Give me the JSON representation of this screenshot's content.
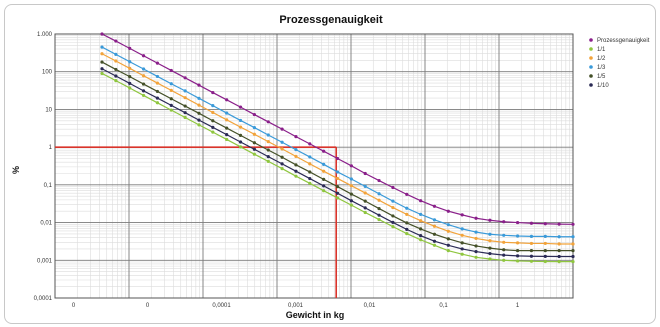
{
  "chart_data": {
    "type": "line",
    "title": "Prozessgenauigkeit",
    "xlabel": "Gewicht in kg",
    "ylabel": "%",
    "x_scale": "log",
    "y_scale": "log",
    "x_ticks": [
      "0",
      "0",
      "0,0001",
      "0,001",
      "0,01",
      "0,1",
      "1"
    ],
    "y_ticks": [
      "1.000",
      "100",
      "10",
      "1",
      "0,1",
      "0,01",
      "0,001",
      "0,0001"
    ],
    "grid": true,
    "legend_position": "right",
    "reference_lines": {
      "y": 1,
      "x": 0.001,
      "color": "#d9342b"
    },
    "series": [
      {
        "name": "Prozessgenauigkeit",
        "color": "#8a1f8a",
        "y": [
          1000,
          650,
          415,
          265,
          169,
          108,
          69,
          44,
          28,
          18,
          11.5,
          7.3,
          4.7,
          3.0,
          1.9,
          1.22,
          0.78,
          0.5,
          0.32,
          0.2,
          0.13,
          0.085,
          0.056,
          0.038,
          0.027,
          0.02,
          0.016,
          0.013,
          0.0115,
          0.0105,
          0.01,
          0.0096,
          0.0093,
          0.0091,
          0.009
        ]
      },
      {
        "name": "1/1",
        "color": "#8fc63f",
        "y": [
          90,
          58,
          37,
          23.5,
          15,
          9.6,
          6.1,
          3.9,
          2.5,
          1.6,
          1.02,
          0.65,
          0.42,
          0.27,
          0.17,
          0.11,
          0.07,
          0.045,
          0.029,
          0.0185,
          0.012,
          0.0078,
          0.0051,
          0.0035,
          0.0025,
          0.0018,
          0.00145,
          0.0012,
          0.00108,
          0.001,
          0.00096,
          0.00094,
          0.00093,
          0.00092,
          0.00092
        ]
      },
      {
        "name": "1/2",
        "color": "#f2a33a",
        "y": [
          300,
          192,
          123,
          78,
          50,
          32,
          20.5,
          13,
          8.3,
          5.3,
          3.4,
          2.2,
          1.4,
          0.9,
          0.57,
          0.36,
          0.23,
          0.148,
          0.095,
          0.061,
          0.039,
          0.025,
          0.0165,
          0.0112,
          0.008,
          0.0059,
          0.0046,
          0.0038,
          0.0033,
          0.003,
          0.0029,
          0.0028,
          0.0028,
          0.0027,
          0.0027
        ]
      },
      {
        "name": "1/3",
        "color": "#3a9ad9",
        "y": [
          450,
          288,
          184,
          118,
          75,
          48,
          31,
          19.7,
          12.6,
          8.0,
          5.1,
          3.3,
          2.1,
          1.35,
          0.86,
          0.55,
          0.35,
          0.22,
          0.143,
          0.091,
          0.058,
          0.037,
          0.024,
          0.0165,
          0.0118,
          0.0088,
          0.0068,
          0.0056,
          0.0049,
          0.0046,
          0.0044,
          0.0043,
          0.0043,
          0.0042,
          0.0042
        ]
      },
      {
        "name": "1/5",
        "color": "#445028",
        "y": [
          180,
          115,
          74,
          47,
          30,
          19.2,
          12.3,
          7.9,
          5.0,
          3.2,
          2.05,
          1.31,
          0.84,
          0.54,
          0.34,
          0.22,
          0.14,
          0.09,
          0.057,
          0.037,
          0.0235,
          0.015,
          0.0098,
          0.0068,
          0.0049,
          0.0037,
          0.0029,
          0.0024,
          0.0021,
          0.0019,
          0.0018,
          0.0018,
          0.0018,
          0.0018,
          0.0018
        ]
      },
      {
        "name": "1/10",
        "color": "#2b2b55",
        "y": [
          120,
          77,
          49,
          31,
          20,
          12.8,
          8.2,
          5.2,
          3.35,
          2.15,
          1.37,
          0.88,
          0.56,
          0.36,
          0.23,
          0.147,
          0.094,
          0.06,
          0.038,
          0.0245,
          0.0157,
          0.0101,
          0.0066,
          0.0045,
          0.0032,
          0.0025,
          0.002,
          0.0017,
          0.0015,
          0.00137,
          0.00131,
          0.00128,
          0.00127,
          0.00126,
          0.00126
        ]
      }
    ]
  }
}
